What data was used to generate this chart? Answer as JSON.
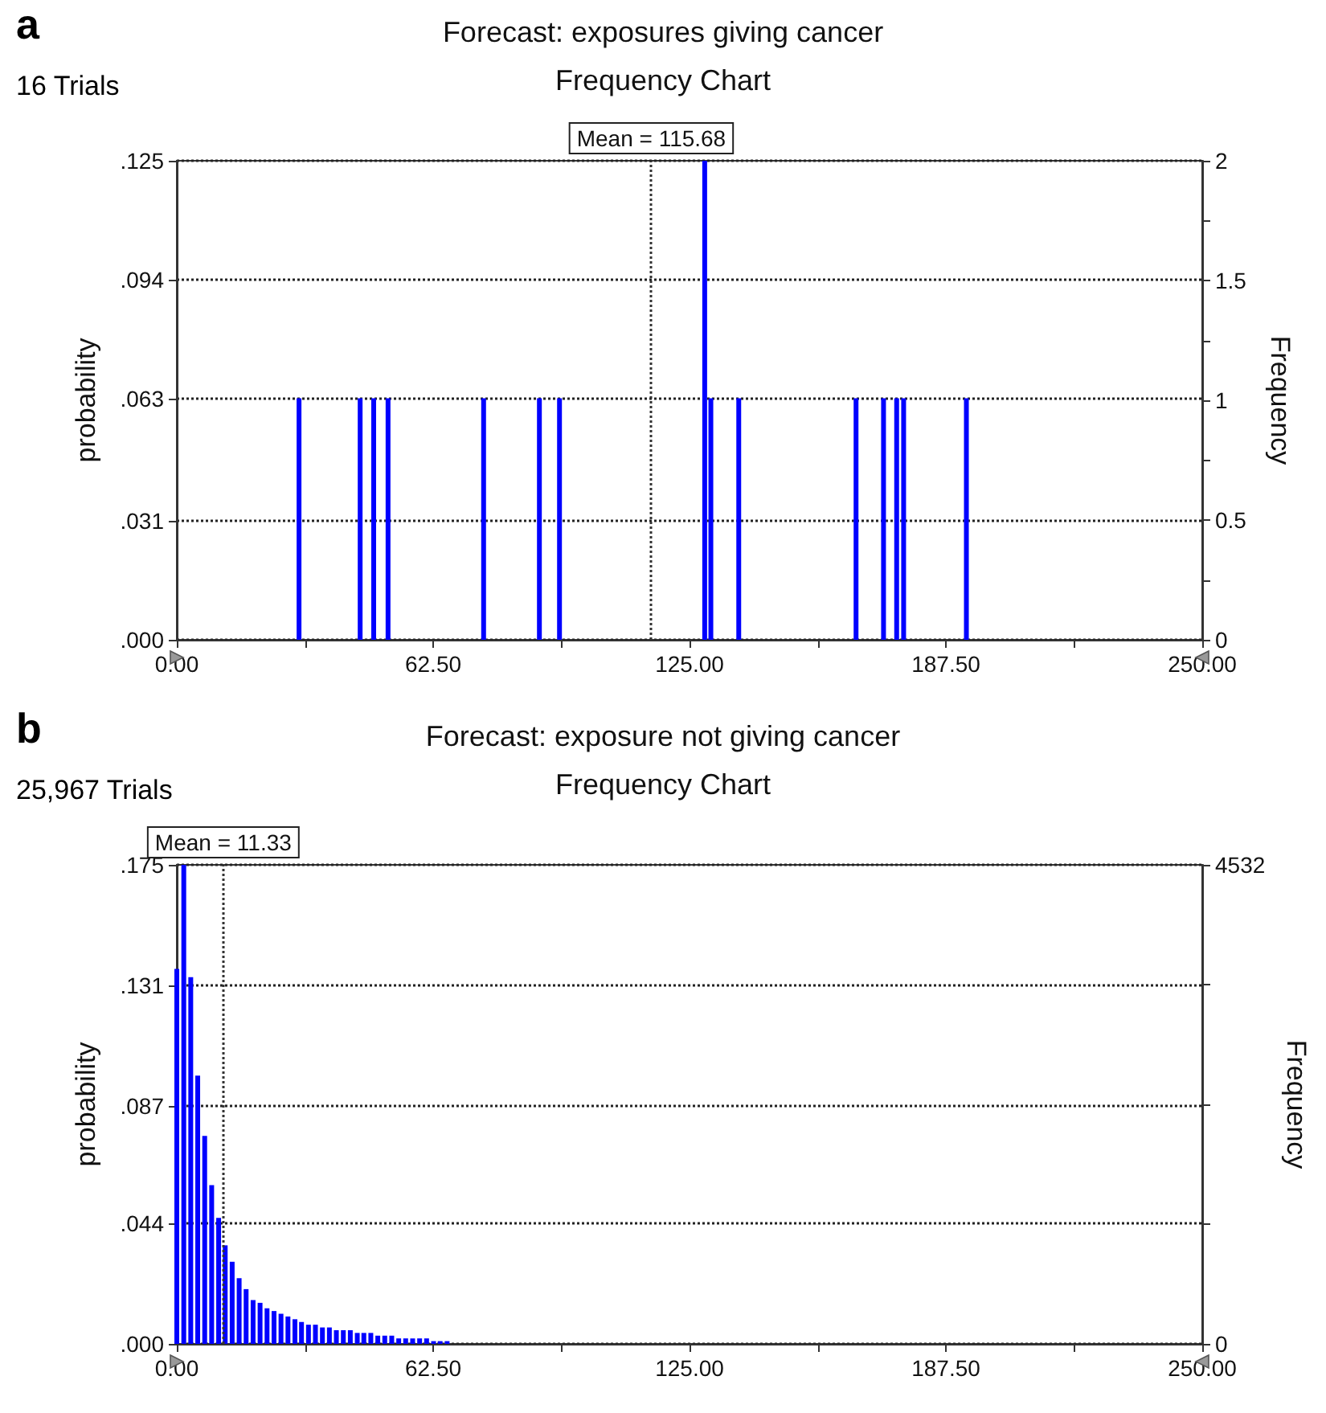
{
  "chart_data": [
    {
      "type": "bar",
      "title": "Forecast: exposures giving cancer",
      "subtitle": "Frequency Chart",
      "ylabel": "probability",
      "y2label": "Frequency",
      "annotations": [
        "a",
        "16 Trials"
      ],
      "x": [
        29.8,
        44.7,
        48.0,
        51.5,
        74.8,
        88.4,
        93.3,
        128.7,
        130.2,
        137.0,
        165.6,
        172.3,
        175.5,
        177.2,
        192.5
      ],
      "series": [
        {
          "color": "#0000ff",
          "values": [
            0.063,
            0.063,
            0.063,
            0.063,
            0.063,
            0.063,
            0.063,
            0.125,
            0.063,
            0.063,
            0.063,
            0.063,
            0.063,
            0.063,
            0.063
          ]
        }
      ],
      "xlim": [
        0,
        250
      ],
      "xticks": [
        {
          "value": 0,
          "label": "0.00"
        },
        {
          "value": 31.25,
          "label": null
        },
        {
          "value": 62.5,
          "label": "62.50"
        },
        {
          "value": 93.75,
          "label": null
        },
        {
          "value": 125,
          "label": "125.00"
        },
        {
          "value": 156.25,
          "label": null
        },
        {
          "value": 187.5,
          "label": "187.50"
        },
        {
          "value": 218.75,
          "label": null
        },
        {
          "value": 250,
          "label": "250.00"
        }
      ],
      "ylim": [
        0,
        0.125
      ],
      "yticks": [
        {
          "value": 0,
          "label": ".000"
        },
        {
          "value": 0.031,
          "label": ".031"
        },
        {
          "value": 0.063,
          "label": ".063"
        },
        {
          "value": 0.094,
          "label": ".094"
        },
        {
          "value": 0.125,
          "label": ".125"
        }
      ],
      "y2lim": [
        0,
        2
      ],
      "y2ticks": [
        0,
        {
          "value": 0.25,
          "label": null
        },
        0.5,
        {
          "value": 0.75,
          "label": null
        },
        1,
        {
          "value": 1.25,
          "label": null
        },
        1.5,
        {
          "value": 1.75,
          "label": null
        },
        2
      ],
      "ref_lines": [
        {
          "axis": "x",
          "value": 115.68,
          "label": "Mean = 115.68",
          "color": "#333333",
          "line_style": "dotted"
        }
      ],
      "grid": "y"
    },
    {
      "type": "bar",
      "title": "Forecast: exposure not giving cancer",
      "subtitle": "Frequency Chart",
      "ylabel": "probability",
      "y2label": "Frequency",
      "annotations": [
        "b",
        "25,967 Trials"
      ],
      "x": [
        0,
        1.7,
        3.4,
        5.1,
        6.8,
        8.5,
        10.2,
        11.8,
        13.5,
        15.2,
        16.9,
        18.6,
        20.3,
        22.0,
        23.7,
        25.4,
        27.1,
        28.8,
        30.4,
        32.1,
        33.8,
        35.5,
        37.2,
        38.9,
        40.6,
        42.3,
        44.0,
        45.6,
        47.3,
        49.0,
        50.7,
        52.4,
        54.1,
        55.8,
        57.5,
        59.2,
        60.9,
        62.6,
        64.2,
        65.9
      ],
      "series": [
        {
          "color": "#0000ff",
          "values": [
            0.137,
            0.175,
            0.134,
            0.098,
            0.076,
            0.058,
            0.046,
            0.036,
            0.03,
            0.024,
            0.02,
            0.016,
            0.015,
            0.013,
            0.012,
            0.011,
            0.01,
            0.009,
            0.008,
            0.007,
            0.007,
            0.006,
            0.006,
            0.005,
            0.005,
            0.005,
            0.004,
            0.004,
            0.004,
            0.003,
            0.003,
            0.003,
            0.002,
            0.002,
            0.002,
            0.002,
            0.002,
            0.001,
            0.001,
            0.001
          ]
        }
      ],
      "xlim": [
        0,
        250
      ],
      "xticks": [
        {
          "value": 0,
          "label": "0.00"
        },
        {
          "value": 31.25,
          "label": null
        },
        {
          "value": 62.5,
          "label": "62.50"
        },
        {
          "value": 93.75,
          "label": null
        },
        {
          "value": 125,
          "label": "125.00"
        },
        {
          "value": 156.25,
          "label": null
        },
        {
          "value": 187.5,
          "label": "187.50"
        },
        {
          "value": 218.75,
          "label": null
        },
        {
          "value": 250,
          "label": "250.00"
        }
      ],
      "ylim": [
        0,
        0.175
      ],
      "yticks": [
        {
          "value": 0,
          "label": ".000"
        },
        {
          "value": 0.044,
          "label": ".044"
        },
        {
          "value": 0.087,
          "label": ".087"
        },
        {
          "value": 0.131,
          "label": ".131"
        },
        {
          "value": 0.175,
          "label": ".175"
        }
      ],
      "y2lim": [
        0,
        4532
      ],
      "y2ticks": [
        0,
        {
          "value": 1133,
          "label": null
        },
        {
          "value": 2266,
          "label": null
        },
        {
          "value": 3399,
          "label": null
        },
        4532
      ],
      "ref_lines": [
        {
          "axis": "x",
          "value": 11.33,
          "label": "Mean = 11.33",
          "color": "#333333",
          "line_style": "dotted"
        }
      ],
      "grid": "y"
    }
  ]
}
